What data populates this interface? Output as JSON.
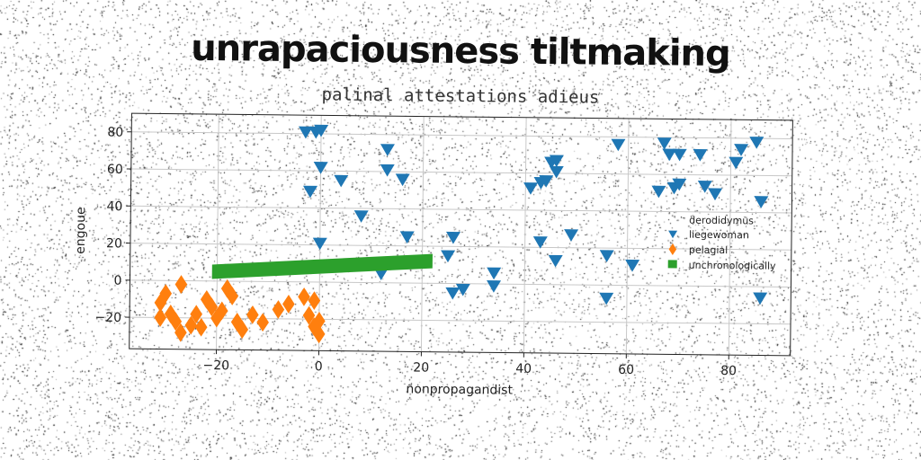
{
  "chart_data": {
    "type": "scatter",
    "title": "unrapaciousness tiltmaking",
    "subtitle": "palinal attestations adieus",
    "xlabel": "nonpropagandist",
    "ylabel": "engoue",
    "xlim": [
      -37,
      92
    ],
    "ylim": [
      -37,
      90
    ],
    "xticks": [
      -20,
      0,
      20,
      40,
      60,
      80
    ],
    "yticks": [
      -20,
      0,
      20,
      40,
      60,
      80
    ],
    "grid": true,
    "legend_title": "derodidymus",
    "legend_position": "right",
    "colors": {
      "liegewoman": "#1f77b4",
      "pelagial": "#ff7f0e",
      "unchronologically": "#2ca02c"
    },
    "series": [
      {
        "name": "liegewoman",
        "marker": "triangle-down",
        "points": [
          [
            -3,
            81
          ],
          [
            -1,
            81
          ],
          [
            0,
            82
          ],
          [
            0,
            62
          ],
          [
            -2,
            49
          ],
          [
            4,
            55
          ],
          [
            8,
            36
          ],
          [
            0,
            21
          ],
          [
            13,
            72
          ],
          [
            13,
            61
          ],
          [
            16,
            56
          ],
          [
            17,
            25
          ],
          [
            12,
            5
          ],
          [
            26,
            25
          ],
          [
            25,
            15
          ],
          [
            26,
            -5
          ],
          [
            28,
            -3
          ],
          [
            34,
            6
          ],
          [
            34,
            -1
          ],
          [
            41,
            52
          ],
          [
            43,
            55
          ],
          [
            44,
            56
          ],
          [
            45,
            66
          ],
          [
            46,
            61
          ],
          [
            46,
            67
          ],
          [
            49,
            27
          ],
          [
            43,
            23
          ],
          [
            46,
            13
          ],
          [
            58,
            76
          ],
          [
            56,
            16
          ],
          [
            56,
            -7
          ],
          [
            61,
            11
          ],
          [
            66,
            51
          ],
          [
            67,
            77
          ],
          [
            68,
            71
          ],
          [
            69,
            53
          ],
          [
            70,
            55
          ],
          [
            70,
            71
          ],
          [
            74,
            71
          ],
          [
            75,
            54
          ],
          [
            77,
            50
          ],
          [
            81,
            67
          ],
          [
            82,
            74
          ],
          [
            85,
            78
          ],
          [
            86,
            46
          ],
          [
            86,
            -6
          ]
        ]
      },
      {
        "name": "pelagial",
        "marker": "diamond",
        "points": [
          [
            -30,
            -7
          ],
          [
            -31,
            -12
          ],
          [
            -29,
            -18
          ],
          [
            -31,
            -20
          ],
          [
            -28,
            -22
          ],
          [
            -27,
            -28
          ],
          [
            -25,
            -24
          ],
          [
            -27,
            -2
          ],
          [
            -24,
            -18
          ],
          [
            -23,
            -25
          ],
          [
            -22,
            -10
          ],
          [
            -21,
            -14
          ],
          [
            -20,
            -20
          ],
          [
            -19,
            -16
          ],
          [
            -18,
            -4
          ],
          [
            -17,
            -8
          ],
          [
            -16,
            -22
          ],
          [
            -15,
            -26
          ],
          [
            -13,
            -18
          ],
          [
            -11,
            -22
          ],
          [
            -8,
            -15
          ],
          [
            -6,
            -12
          ],
          [
            -3,
            -8
          ],
          [
            -2,
            -18
          ],
          [
            -1,
            -24
          ],
          [
            0,
            -28
          ],
          [
            0,
            -21
          ],
          [
            -1,
            -10
          ]
        ]
      },
      {
        "name": "unchronologically",
        "marker": "square",
        "segment": [
          [
            -21,
            5
          ],
          [
            22,
            12
          ]
        ]
      }
    ]
  }
}
